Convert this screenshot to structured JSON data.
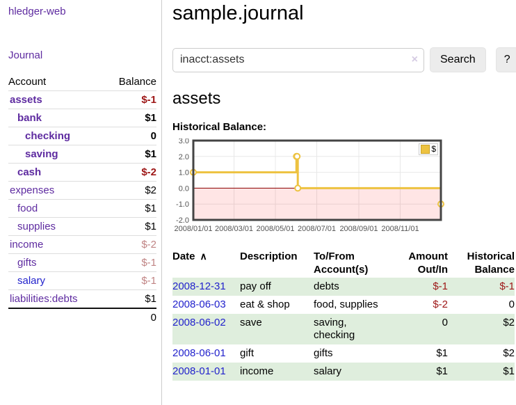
{
  "colors": {
    "link_purple": "#5e2ba0",
    "link_blue": "#2222cc",
    "negative_strong": "#9d1616",
    "negative_muted": "#c08484",
    "row_shade_green": "#dfeedd",
    "chart_line_gold": "#edc240",
    "chart_negative_fill": "#fbdcdc",
    "chart_zero_line": "#8b0000"
  },
  "sidebar": {
    "app_title": "hledger-web",
    "journal_label": "Journal",
    "accounts_header": {
      "account": "Account",
      "balance": "Balance"
    },
    "accounts": [
      {
        "name": "assets",
        "balance": "$-1"
      },
      {
        "name": "bank",
        "balance": "$1"
      },
      {
        "name": "checking",
        "balance": "0"
      },
      {
        "name": "saving",
        "balance": "$1"
      },
      {
        "name": "cash",
        "balance": "$-2"
      },
      {
        "name": "expenses",
        "balance": "$2"
      },
      {
        "name": "food",
        "balance": "$1"
      },
      {
        "name": "supplies",
        "balance": "$1"
      },
      {
        "name": "income",
        "balance": "$-2"
      },
      {
        "name": "gifts",
        "balance": "$-1"
      },
      {
        "name": "salary",
        "balance": "$-1"
      },
      {
        "name": "liabilities:debts",
        "balance": "$1"
      }
    ],
    "total": "0"
  },
  "main": {
    "title": "sample.journal",
    "search": {
      "value": "inacct:assets",
      "clear_icon": "×",
      "button_label": "Search",
      "help_label": "?"
    },
    "account_heading": "assets",
    "chart_label": "Historical Balance:"
  },
  "chart_data": {
    "type": "line",
    "title": "Historical Balance",
    "series": [
      {
        "name": "$",
        "color": "#edc240",
        "step": true,
        "points": [
          [
            "2008-01-01",
            1
          ],
          [
            "2008-06-01",
            2
          ],
          [
            "2008-06-02",
            2
          ],
          [
            "2008-06-03",
            0
          ],
          [
            "2008-12-31",
            -1
          ]
        ]
      }
    ],
    "x_ticks": [
      "2008/01/01",
      "2008/03/01",
      "2008/05/01",
      "2008/07/01",
      "2008/09/01",
      "2008/11/01"
    ],
    "y_ticks": [
      "3.0",
      "2.0",
      "1.0",
      "0.0",
      "-1.0",
      "-2.0"
    ],
    "ylim": [
      -2,
      3
    ],
    "x_range": [
      "2008-01-01",
      "2008-12-31"
    ],
    "grid": true,
    "legend_position": "top-right",
    "negative_region": true
  },
  "table": {
    "headers": [
      "Date",
      "Description",
      "To/From Account(s)",
      "Amount Out/In",
      "Historical Balance"
    ],
    "sort_icon": "∧",
    "rows": [
      {
        "date": "2008-12-31",
        "description": "pay off",
        "accounts": "debts",
        "amount": "$-1",
        "balance": "$-1"
      },
      {
        "date": "2008-06-03",
        "description": "eat & shop",
        "accounts": "food, supplies",
        "amount": "$-2",
        "balance": "0"
      },
      {
        "date": "2008-06-02",
        "description": "save",
        "accounts": "saving, checking",
        "amount": "0",
        "balance": "$2"
      },
      {
        "date": "2008-06-01",
        "description": "gift",
        "accounts": "gifts",
        "amount": "$1",
        "balance": "$2"
      },
      {
        "date": "2008-01-01",
        "description": "income",
        "accounts": "salary",
        "amount": "$1",
        "balance": "$1"
      }
    ]
  }
}
